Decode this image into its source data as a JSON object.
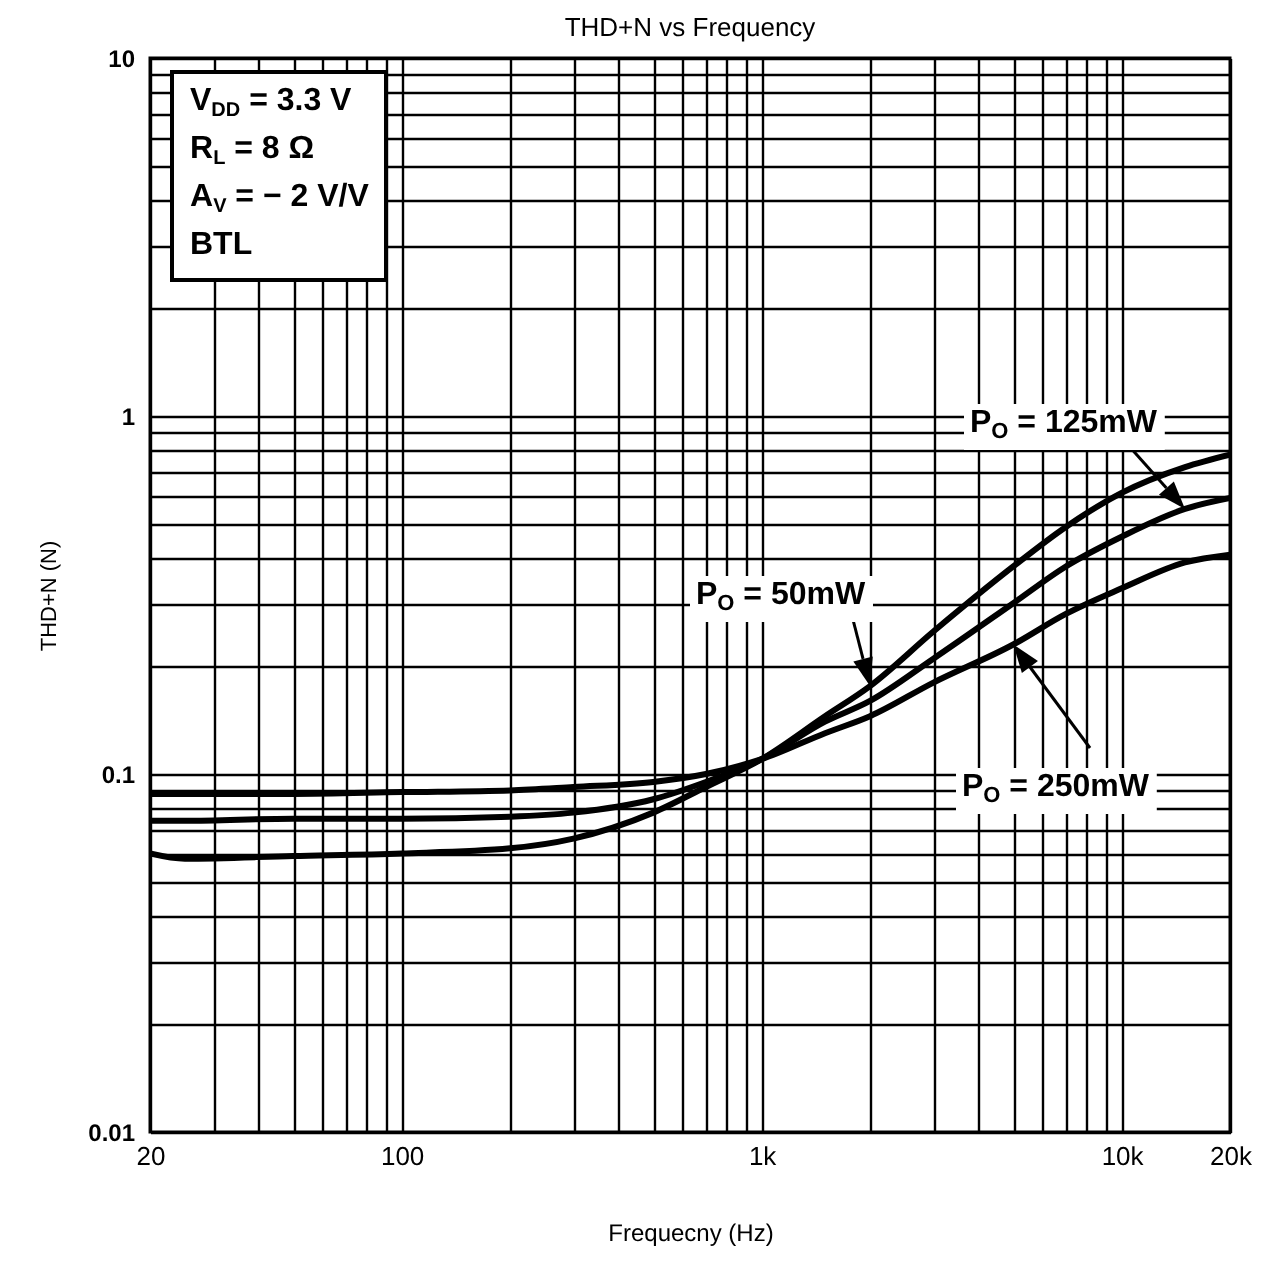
{
  "chart_data": {
    "type": "line",
    "title": "THD+N vs Frequency",
    "xlabel": "Frequecny (Hz)",
    "ylabel": "THD+N (N)",
    "log": "xy",
    "xlim": [
      20,
      20000
    ],
    "ylim": [
      0.01,
      10
    ],
    "xticks": [
      20,
      100,
      {
        "value": 1000,
        "label": "1k"
      },
      {
        "value": 10000,
        "label": "10k"
      },
      {
        "value": 20000,
        "label": "20k"
      }
    ],
    "yticks": [
      0.01,
      0.1,
      1,
      10
    ],
    "grid": true,
    "legend": false,
    "annotations": [
      "V$_{DD}$ = 3.3 V",
      "R$_{L}$ = 8 Ω",
      "A$_{V}$ =  − 2 V/V",
      "BTL"
    ],
    "series": [
      {
        "name": "P$_{O}$ = 50mW",
        "color": "#000000",
        "x": [
          20,
          25,
          50,
          100,
          200,
          300,
          500,
          700,
          1000,
          1500,
          2000,
          3000,
          5000,
          7000,
          10000,
          15000,
          20000
        ],
        "values": [
          0.06,
          0.058,
          0.059,
          0.06,
          0.062,
          0.066,
          0.078,
          0.092,
          0.11,
          0.145,
          0.176,
          0.25,
          0.38,
          0.49,
          0.61,
          0.72,
          0.78
        ]
      },
      {
        "name": "P$_{O}$ = 125mW",
        "color": "#000000",
        "x": [
          20,
          25,
          50,
          100,
          200,
          300,
          500,
          700,
          1000,
          1500,
          2000,
          3000,
          5000,
          7000,
          10000,
          15000,
          20000
        ],
        "values": [
          0.074,
          0.074,
          0.075,
          0.075,
          0.076,
          0.078,
          0.085,
          0.095,
          0.11,
          0.14,
          0.16,
          0.21,
          0.3,
          0.38,
          0.46,
          0.55,
          0.59
        ]
      },
      {
        "name": "P$_{O}$ = 250mW",
        "color": "#000000",
        "x": [
          20,
          25,
          50,
          100,
          200,
          300,
          500,
          700,
          1000,
          1500,
          2000,
          3000,
          5000,
          7000,
          10000,
          15000,
          20000
        ],
        "values": [
          0.088,
          0.088,
          0.088,
          0.089,
          0.09,
          0.092,
          0.095,
          0.1,
          0.11,
          0.13,
          0.145,
          0.18,
          0.23,
          0.28,
          0.33,
          0.39,
          0.41
        ]
      }
    ]
  }
}
